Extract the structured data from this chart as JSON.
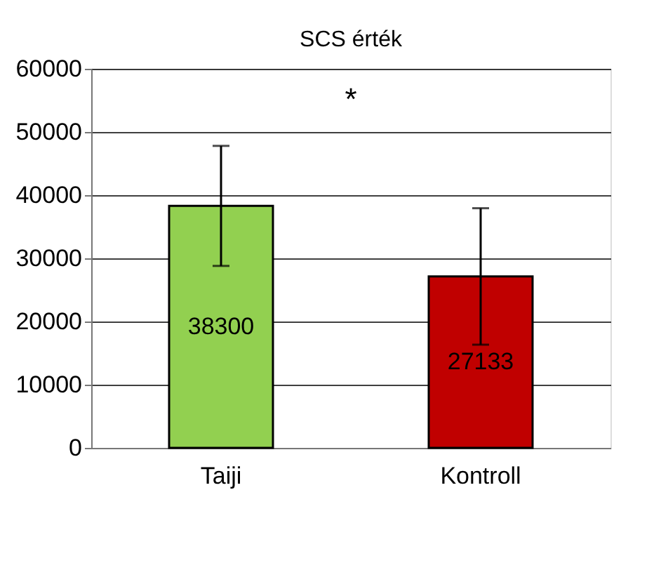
{
  "chart_data": {
    "type": "bar",
    "title": "SCS érték",
    "categories": [
      "Taiji",
      "Kontroll"
    ],
    "values": [
      38300,
      27133
    ],
    "colors": [
      "#92d050",
      "#c00000"
    ],
    "errors": [
      9500,
      10800
    ],
    "data_labels": true,
    "ylim": [
      0,
      60000
    ],
    "yticks": [
      0,
      10000,
      20000,
      30000,
      40000,
      50000,
      60000
    ],
    "grid": "y",
    "annotations": [
      "*"
    ]
  }
}
